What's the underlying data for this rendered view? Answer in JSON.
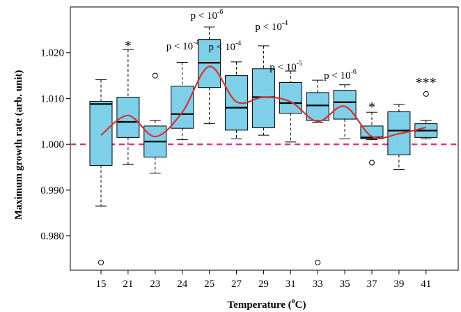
{
  "chart_data": {
    "type": "box",
    "xlabel": {
      "pre": "Temperature (",
      "sup": "o",
      "post": "C)"
    },
    "ylabel": "Maximum growth rate (arb. unit)",
    "categories": [
      "15",
      "21",
      "23",
      "24",
      "25",
      "27",
      "29",
      "31",
      "33",
      "35",
      "37",
      "39",
      "41"
    ],
    "ylim": [
      0.9725,
      1.03
    ],
    "yticks": [
      0.98,
      0.99,
      1.0,
      1.01,
      1.02
    ],
    "ytick_labels": [
      "0.980",
      "0.990",
      "1.000",
      "1.010",
      "1.020"
    ],
    "reference_line": {
      "y": 1.0,
      "color": "#e0288a",
      "style": "dashed"
    },
    "box_color": "#7ecfe8",
    "boxes": [
      {
        "category": "15",
        "whisker_low": 0.9865,
        "q1": 0.9954,
        "median": 1.0088,
        "q3": 1.0094,
        "whisker_high": 1.0141,
        "outliers": [
          0.9742
        ]
      },
      {
        "category": "21",
        "whisker_low": 0.9956,
        "q1": 1.0015,
        "median": 1.0049,
        "q3": 1.0103,
        "whisker_high": 1.0207,
        "outliers": []
      },
      {
        "category": "23",
        "whisker_low": 0.9937,
        "q1": 0.9972,
        "median": 1.0006,
        "q3": 1.004,
        "whisker_high": 1.0052,
        "outliers": [
          1.015
        ]
      },
      {
        "category": "24",
        "whisker_low": 1.001,
        "q1": 1.0035,
        "median": 1.0066,
        "q3": 1.0127,
        "whisker_high": 1.0179,
        "outliers": []
      },
      {
        "category": "25",
        "whisker_low": 1.0045,
        "q1": 1.0124,
        "median": 1.0178,
        "q3": 1.0229,
        "whisker_high": 1.0256,
        "outliers": []
      },
      {
        "category": "27",
        "whisker_low": 1.0012,
        "q1": 1.0031,
        "median": 1.008,
        "q3": 1.015,
        "whisker_high": 1.018,
        "outliers": []
      },
      {
        "category": "29",
        "whisker_low": 1.002,
        "q1": 1.0036,
        "median": 1.0103,
        "q3": 1.0165,
        "whisker_high": 1.0215,
        "outliers": []
      },
      {
        "category": "31",
        "whisker_low": 1.0005,
        "q1": 1.0068,
        "median": 1.009,
        "q3": 1.0135,
        "whisker_high": 1.016,
        "outliers": []
      },
      {
        "category": "33",
        "whisker_low": 1.0048,
        "q1": 1.0052,
        "median": 1.0085,
        "q3": 1.0113,
        "whisker_high": 1.014,
        "outliers": [
          0.9742
        ]
      },
      {
        "category": "35",
        "whisker_low": 1.0012,
        "q1": 1.0055,
        "median": 1.0092,
        "q3": 1.0118,
        "whisker_high": 1.013,
        "outliers": []
      },
      {
        "category": "37",
        "whisker_low": 1.001,
        "q1": 1.0012,
        "median": 1.0015,
        "q3": 1.004,
        "whisker_high": 1.007,
        "outliers": [
          0.996
        ]
      },
      {
        "category": "39",
        "whisker_low": 0.9945,
        "q1": 0.9977,
        "median": 1.003,
        "q3": 1.0071,
        "whisker_high": 1.0087,
        "outliers": []
      },
      {
        "category": "41",
        "whisker_low": 1.0012,
        "q1": 1.0015,
        "median": 1.003,
        "q3": 1.0045,
        "whisker_high": 1.0052,
        "outliers": [
          1.011
        ]
      }
    ],
    "trend_line": {
      "color": "#d9302c",
      "values": [
        1.002,
        1.0063,
        1.0017,
        1.007,
        1.017,
        1.0093,
        1.0103,
        1.0093,
        1.005,
        1.0083,
        1.0017,
        1.0023,
        1.0037
      ]
    },
    "annotations": [
      {
        "category": "21",
        "type": "star",
        "text": "*"
      },
      {
        "category": "24",
        "type": "p",
        "base": "p < 10",
        "exp": "-4"
      },
      {
        "category": "25",
        "type": "p",
        "base": "p < 10",
        "exp": "-6"
      },
      {
        "category": "27",
        "type": "p",
        "base": "p < 10",
        "exp": "-4"
      },
      {
        "category": "29",
        "type": "p",
        "base": "p < 10",
        "exp": "-4"
      },
      {
        "category": "31",
        "type": "p",
        "base": "p < 10",
        "exp": "-5"
      },
      {
        "category": "35",
        "type": "p",
        "base": "p < 10",
        "exp": "-6"
      },
      {
        "category": "37",
        "type": "star",
        "text": "*"
      },
      {
        "category": "41",
        "type": "star",
        "text": "***"
      }
    ]
  }
}
